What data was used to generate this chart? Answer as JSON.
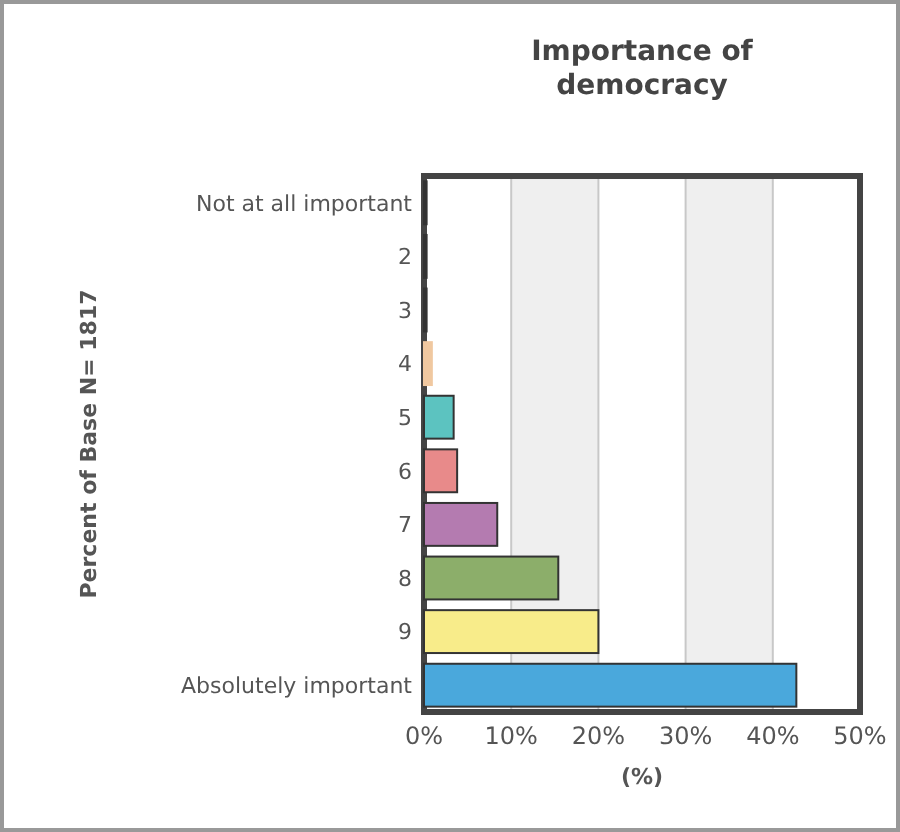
{
  "chart_data": {
    "type": "bar",
    "orientation": "horizontal",
    "title": "Importance of democracy",
    "xlabel": "(%)",
    "ylabel": "Percent of Base N= 1817",
    "categories": [
      "Not at all important",
      "2",
      "3",
      "4",
      "5",
      "6",
      "7",
      "8",
      "9",
      "Absolutely important"
    ],
    "values": [
      0.3,
      0.3,
      0.3,
      0.9,
      3.4,
      3.8,
      8.4,
      15.4,
      20,
      42.7
    ],
    "colors": [
      "#333333",
      "#333333",
      "#333333",
      "#f0c8a0",
      "#5cc3c0",
      "#e88a8a",
      "#b47bb0",
      "#8cae6a",
      "#f8ec8a",
      "#4aa8dc"
    ],
    "xlim": [
      0,
      50
    ],
    "xticks": [
      {
        "value": 0,
        "label": "0%"
      },
      {
        "value": 10,
        "label": "10%"
      },
      {
        "value": 20,
        "label": "20%"
      },
      {
        "value": 30,
        "label": "30%"
      },
      {
        "value": 40,
        "label": "40%"
      },
      {
        "value": 50,
        "label": "50%"
      }
    ],
    "grid": "x"
  }
}
